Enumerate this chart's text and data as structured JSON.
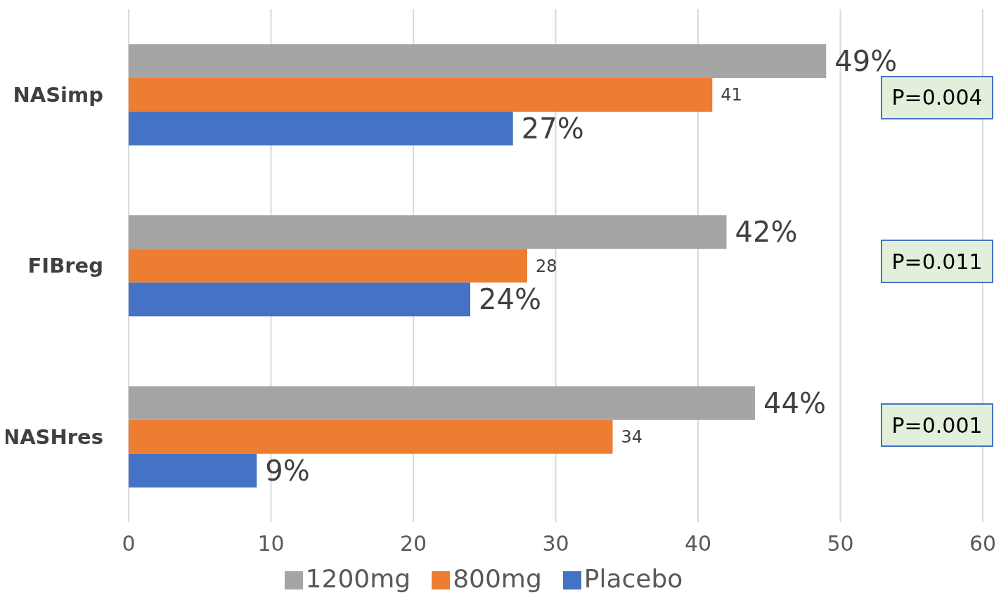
{
  "chart_data": {
    "type": "bar",
    "orientation": "horizontal",
    "categories": [
      "NASimp",
      "FIBreg",
      "NASHres"
    ],
    "series": [
      {
        "name": "1200mg",
        "color": "#a5a5a5",
        "values": [
          49,
          42,
          44
        ],
        "value_labels": [
          "49%",
          "42%",
          "44%"
        ]
      },
      {
        "name": "800mg",
        "color": "#ed7d31",
        "values": [
          41,
          28,
          34
        ],
        "value_labels": [
          "41",
          "28",
          "34"
        ]
      },
      {
        "name": "Placebo",
        "color": "#4472c4",
        "values": [
          27,
          24,
          9
        ],
        "value_labels": [
          "27%",
          "24%",
          "9%"
        ]
      }
    ],
    "xlim": [
      0,
      60
    ],
    "xticks": [
      0,
      10,
      20,
      30,
      40,
      50,
      60
    ],
    "grid": "x",
    "legend": "bottom",
    "annotations": [
      "P=0.004",
      "P=0.011",
      "P=0.001"
    ]
  }
}
